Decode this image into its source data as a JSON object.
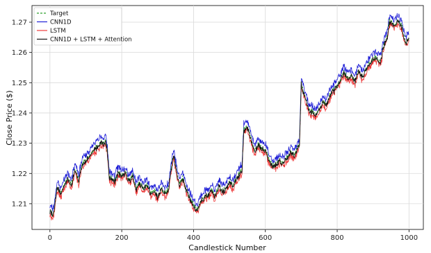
{
  "chart_data": {
    "type": "line",
    "xlabel": "Candlestick Number",
    "ylabel": "Close Price ($)",
    "xlim": [
      -50,
      1040
    ],
    "ylim": [
      1.2015,
      1.2755
    ],
    "xticks": [
      0,
      200,
      400,
      600,
      800,
      1000
    ],
    "yticks": [
      1.21,
      1.22,
      1.23,
      1.24,
      1.25,
      1.26,
      1.27
    ],
    "ytick_labels": [
      "1.21",
      "1.22",
      "1.23",
      "1.24",
      "1.25",
      "1.26",
      "1.27"
    ],
    "grid": true,
    "legend_position": "upper-left",
    "anchors_x": [
      0,
      10,
      20,
      30,
      40,
      50,
      60,
      70,
      80,
      90,
      100,
      110,
      120,
      130,
      140,
      150,
      155,
      160,
      165,
      170,
      180,
      190,
      200,
      210,
      220,
      230,
      240,
      250,
      260,
      270,
      280,
      290,
      300,
      310,
      320,
      330,
      340,
      345,
      350,
      360,
      370,
      380,
      390,
      400,
      410,
      420,
      430,
      440,
      450,
      460,
      470,
      480,
      490,
      500,
      510,
      520,
      530,
      535,
      540,
      550,
      560,
      570,
      580,
      590,
      600,
      610,
      620,
      630,
      640,
      650,
      660,
      670,
      680,
      690,
      695,
      700,
      710,
      720,
      730,
      740,
      750,
      760,
      770,
      780,
      790,
      800,
      810,
      820,
      830,
      840,
      850,
      860,
      870,
      880,
      890,
      900,
      910,
      920,
      930,
      940,
      945,
      950,
      960,
      970,
      980,
      990,
      1000
    ],
    "series": [
      {
        "name": "Target",
        "color": "#2ca02c",
        "dashed": true,
        "offset": 0.0,
        "noise": 0.0006,
        "seed": 11,
        "values": [
          1.2075,
          1.2065,
          1.2155,
          1.2135,
          1.2165,
          1.2185,
          1.2165,
          1.2215,
          1.2175,
          1.2235,
          1.2245,
          1.2255,
          1.2275,
          1.2285,
          1.2305,
          1.23,
          1.231,
          1.2275,
          1.219,
          1.2185,
          1.2175,
          1.2205,
          1.2195,
          1.2205,
          1.2175,
          1.2195,
          1.215,
          1.217,
          1.215,
          1.2165,
          1.2135,
          1.2145,
          1.2125,
          1.215,
          1.2135,
          1.215,
          1.2235,
          1.226,
          1.2225,
          1.2165,
          1.2185,
          1.2145,
          1.212,
          1.2095,
          1.208,
          1.211,
          1.2125,
          1.213,
          1.2145,
          1.2125,
          1.216,
          1.214,
          1.215,
          1.2175,
          1.216,
          1.2185,
          1.2205,
          1.2215,
          1.2345,
          1.2355,
          1.2315,
          1.2275,
          1.2295,
          1.2285,
          1.228,
          1.2245,
          1.2225,
          1.223,
          1.2245,
          1.2235,
          1.2255,
          1.227,
          1.226,
          1.2285,
          1.2295,
          1.2495,
          1.2455,
          1.2415,
          1.2405,
          1.2395,
          1.241,
          1.244,
          1.2425,
          1.246,
          1.2475,
          1.249,
          1.2515,
          1.2535,
          1.2515,
          1.2525,
          1.2505,
          1.254,
          1.252,
          1.2545,
          1.2565,
          1.258,
          1.2585,
          1.257,
          1.2625,
          1.2655,
          1.27,
          1.2705,
          1.269,
          1.2705,
          1.2685,
          1.2635,
          1.2645
        ]
      },
      {
        "name": "CNN1D",
        "color": "#1f1fd6",
        "dashed": false,
        "offset": 0.0018,
        "noise": 0.0009,
        "seed": 23
      },
      {
        "name": "LSTM",
        "color": "#ee3a3a",
        "dashed": false,
        "offset": -0.0012,
        "noise": 0.0009,
        "seed": 37
      },
      {
        "name": "CNN1D + LSTM + Attention",
        "color": "#111111",
        "dashed": false,
        "offset": -0.0003,
        "noise": 0.0007,
        "seed": 51
      }
    ]
  }
}
